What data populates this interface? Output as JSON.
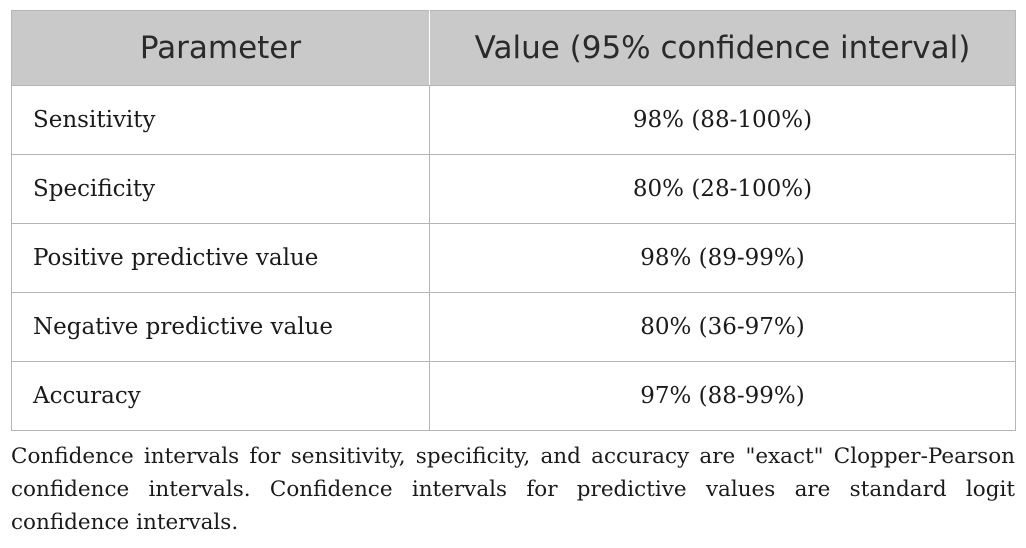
{
  "table": {
    "headers": [
      "Parameter",
      "Value (95% confidence interval)"
    ],
    "rows": [
      {
        "parameter": "Sensitivity",
        "value": "98% (88-100%)"
      },
      {
        "parameter": "Specificity",
        "value": "80% (28-100%)"
      },
      {
        "parameter": "Positive predictive value",
        "value": "98% (89-99%)"
      },
      {
        "parameter": "Negative predictive value",
        "value": "80% (36-97%)"
      },
      {
        "parameter": "Accuracy",
        "value": "97% (88-99%)"
      }
    ]
  },
  "footnote": "Confidence intervals for sensitivity, specificity, and accuracy are \"exact\" Clopper-Pearson confidence intervals. Confidence intervals for predictive values are standard logit confidence intervals.",
  "colors": {
    "header_background": "#c9c9c9",
    "border": "#b5b5b5",
    "text": "#1a1a1a"
  }
}
